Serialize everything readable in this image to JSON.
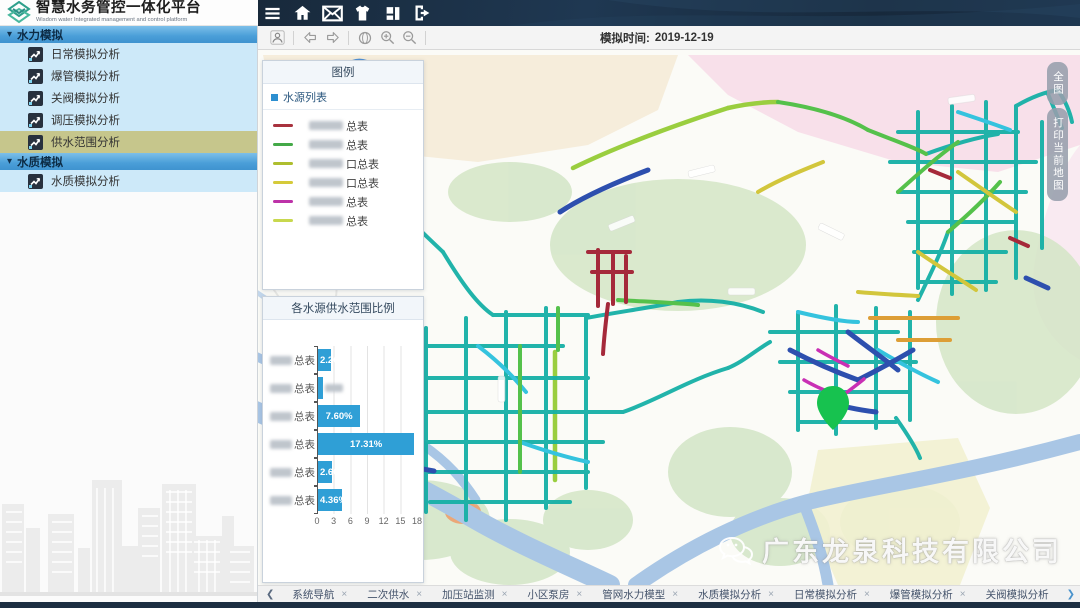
{
  "header": {
    "title": "智慧水务管控一体化平台",
    "subtitle": "Wisdom water Integrated management and control platform",
    "icons": [
      "menu-icon",
      "home-icon",
      "mail-icon",
      "shirt-icon",
      "layout-icon",
      "logout-icon"
    ]
  },
  "sidebar": {
    "rows": [
      {
        "type": "section",
        "label": "水力模拟"
      },
      {
        "type": "item",
        "label": "日常模拟分析",
        "selected": false
      },
      {
        "type": "item",
        "label": "爆管模拟分析",
        "selected": false
      },
      {
        "type": "item",
        "label": "关阀模拟分析",
        "selected": false
      },
      {
        "type": "item",
        "label": "调压模拟分析",
        "selected": false
      },
      {
        "type": "item",
        "label": "供水范围分析",
        "selected": true
      },
      {
        "type": "section",
        "label": "水质模拟"
      },
      {
        "type": "item",
        "label": "水质模拟分析",
        "selected": false
      }
    ]
  },
  "map_toolbar": {
    "sim_time_label": "模拟时间:",
    "sim_time_value": "2019-12-19",
    "icons": [
      "user-icon",
      "arrow-left-icon",
      "arrow-right-icon",
      "globe-icon",
      "zoom-in-icon",
      "zoom-out-icon"
    ]
  },
  "legend_panel": {
    "title": "图例",
    "group_title": "水源列表",
    "items": [
      {
        "suffix": "总表",
        "color": "#a8323e",
        "name_censored": true
      },
      {
        "suffix": "总表",
        "color": "#44a948",
        "name_censored": true
      },
      {
        "suffix": "口总表",
        "color": "#aebe2e",
        "name_censored": true
      },
      {
        "suffix": "口总表",
        "color": "#d5ca3a",
        "name_censored": true
      },
      {
        "suffix": "总表",
        "color": "#bd32a8",
        "name_censored": true
      },
      {
        "suffix": "总表",
        "color": "#c8d84e",
        "name_censored": true
      }
    ]
  },
  "chart_panel": {
    "title": "各水源供水范围比例"
  },
  "chart_data": {
    "type": "bar",
    "orientation": "horizontal",
    "title": "各水源供水范围比例",
    "categories": [
      "总表",
      "总表",
      "总表",
      "总表",
      "总表",
      "总表"
    ],
    "categories_censored_prefix": true,
    "values": [
      2.26,
      0.9,
      7.6,
      17.31,
      2.6,
      4.36
    ],
    "value_labels": [
      "2.26%",
      "",
      "7.60%",
      "17.31%",
      "2.60%",
      "4.36%"
    ],
    "xlim": [
      0,
      18
    ],
    "xticks": [
      0,
      3,
      6,
      9,
      12,
      15,
      18
    ],
    "bar_color": "#2f9fd6",
    "grid": true,
    "legend_position": "none"
  },
  "map": {
    "fullmap_button": "全图",
    "print_button": "打印当前地图",
    "watermark": "广东龙泉科技有限公司"
  },
  "bottom_tabs": {
    "tabs": [
      {
        "label": "系统导航",
        "closable": true
      },
      {
        "label": "二次供水",
        "closable": true
      },
      {
        "label": "加压站监测",
        "closable": true
      },
      {
        "label": "小区泵房",
        "closable": true
      },
      {
        "label": "管网水力模型",
        "closable": true
      },
      {
        "label": "水质模拟分析",
        "closable": true
      },
      {
        "label": "日常模拟分析",
        "closable": true
      },
      {
        "label": "爆管模拟分析",
        "closable": true
      },
      {
        "label": "关阀模拟分析",
        "closable": false
      }
    ],
    "glyphs": {
      "prev": "❮",
      "next": "❯",
      "close": "×",
      "chevron_down": "▾"
    }
  }
}
